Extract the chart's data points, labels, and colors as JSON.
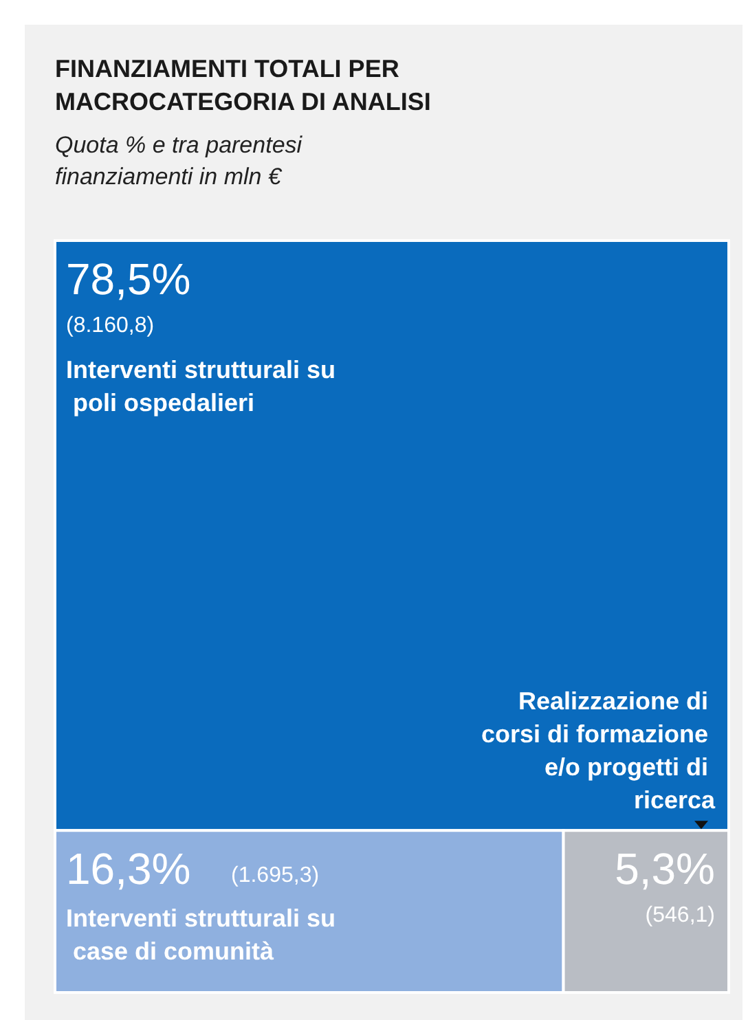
{
  "chart_data": {
    "type": "other",
    "title": "FINANZIAMENTI TOTALI PER MACROCATEGORIA DI ANALISI",
    "subtitle": "Quota % e tra parentesi finanziamenti in mln €",
    "categories": [
      "Interventi strutturali su poli ospedalieri",
      "Interventi strutturali su case di comunità",
      "Realizzazione di corsi di formazione e/o progetti di ricerca"
    ],
    "series": [
      {
        "values": [
          78.5,
          16.3,
          5.3
        ],
        "colors": [
          "#0a6bbd",
          "#8fb0df",
          "#b9bdc4"
        ],
        "value_labels": [
          "78,5%",
          "16,3%",
          "5,3%"
        ]
      },
      {
        "values": [
          8160.8,
          1695.3,
          546.1
        ],
        "value_labels": [
          "(8.160,8)",
          "(1.695,3)",
          "(546,1)"
        ]
      }
    ]
  }
}
